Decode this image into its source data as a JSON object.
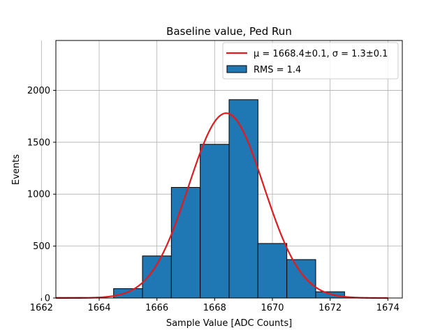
{
  "chart_data": {
    "type": "bar",
    "title": "Baseline value, Ped Run",
    "xlabel": "Sample Value [ADC Counts]",
    "ylabel": "Events",
    "xlim": [
      1662.5,
      1674.5
    ],
    "ylim": [
      0,
      2480
    ],
    "grid": true,
    "legend_position": "top-right",
    "xticks": [
      1662,
      1664,
      1666,
      1668,
      1670,
      1672,
      1674
    ],
    "yticks": [
      0,
      500,
      1000,
      1500,
      2000
    ],
    "histogram": {
      "name": "RMS = 1.4",
      "bins": [
        {
          "x0": 1662.5,
          "x1": 1663.5,
          "count": 5
        },
        {
          "x0": 1663.5,
          "x1": 1664.5,
          "count": 0
        },
        {
          "x0": 1664.5,
          "x1": 1665.5,
          "count": 90
        },
        {
          "x0": 1665.5,
          "x1": 1666.5,
          "count": 405
        },
        {
          "x0": 1666.5,
          "x1": 1667.5,
          "count": 1065
        },
        {
          "x0": 1667.5,
          "x1": 1668.5,
          "count": 1480
        },
        {
          "x0": 1668.5,
          "x1": 1669.5,
          "count": 1910
        },
        {
          "x0": 1669.5,
          "x1": 1670.5,
          "count": 525
        },
        {
          "x0": 1670.5,
          "x1": 1671.5,
          "count": 370
        },
        {
          "x0": 1671.5,
          "x1": 1672.5,
          "count": 60
        }
      ],
      "color": "#1f77b4"
    },
    "fit": {
      "name_mu": "μ = 1668.4±0.1, ",
      "name_sigma": "σ = 1.3±0.1",
      "type": "gaussian",
      "mu": 1668.4,
      "sigma": 1.3,
      "amplitude": 1780,
      "x_range": [
        1662.5,
        1674
      ],
      "color": "#e41a1c"
    }
  }
}
